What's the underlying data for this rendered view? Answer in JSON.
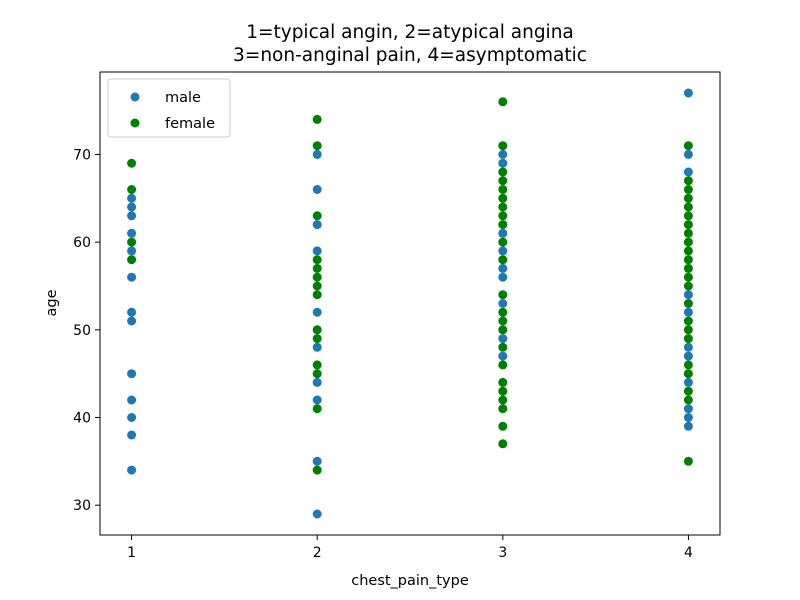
{
  "chart_data": {
    "type": "scatter",
    "title_lines": [
      "1=typical angin, 2=atypical angina",
      "3=non-anginal pain, 4=asymptomatic"
    ],
    "xlabel": "chest_pain_type",
    "ylabel": "age",
    "xlim": [
      0.83,
      4.17
    ],
    "ylim": [
      26.6,
      79.4
    ],
    "xticks": [
      1,
      2,
      3,
      4
    ],
    "yticks": [
      30,
      40,
      50,
      60,
      70
    ],
    "grid": false,
    "legend": "top-left",
    "series": [
      {
        "name": "male",
        "color": "#1f77b4",
        "points": [
          [
            1,
            34
          ],
          [
            1,
            38
          ],
          [
            1,
            40
          ],
          [
            1,
            42
          ],
          [
            1,
            45
          ],
          [
            1,
            51
          ],
          [
            1,
            52
          ],
          [
            1,
            56
          ],
          [
            1,
            59
          ],
          [
            1,
            61
          ],
          [
            1,
            63
          ],
          [
            1,
            64
          ],
          [
            1,
            65
          ],
          [
            2,
            29
          ],
          [
            2,
            35
          ],
          [
            2,
            42
          ],
          [
            2,
            44
          ],
          [
            2,
            48
          ],
          [
            2,
            52
          ],
          [
            2,
            59
          ],
          [
            2,
            62
          ],
          [
            2,
            66
          ],
          [
            2,
            70
          ],
          [
            3,
            47
          ],
          [
            3,
            49
          ],
          [
            3,
            53
          ],
          [
            3,
            56
          ],
          [
            3,
            57
          ],
          [
            3,
            59
          ],
          [
            3,
            61
          ],
          [
            3,
            69
          ],
          [
            3,
            70
          ],
          [
            4,
            39
          ],
          [
            4,
            40
          ],
          [
            4,
            41
          ],
          [
            4,
            44
          ],
          [
            4,
            47
          ],
          [
            4,
            48
          ],
          [
            4,
            52
          ],
          [
            4,
            54
          ],
          [
            4,
            68
          ],
          [
            4,
            70
          ],
          [
            4,
            77
          ]
        ]
      },
      {
        "name": "female",
        "color": "#008000",
        "points": [
          [
            1,
            58
          ],
          [
            1,
            60
          ],
          [
            1,
            66
          ],
          [
            1,
            69
          ],
          [
            2,
            34
          ],
          [
            2,
            41
          ],
          [
            2,
            45
          ],
          [
            2,
            46
          ],
          [
            2,
            49
          ],
          [
            2,
            50
          ],
          [
            2,
            54
          ],
          [
            2,
            55
          ],
          [
            2,
            56
          ],
          [
            2,
            57
          ],
          [
            2,
            58
          ],
          [
            2,
            63
          ],
          [
            2,
            71
          ],
          [
            2,
            74
          ],
          [
            3,
            37
          ],
          [
            3,
            39
          ],
          [
            3,
            41
          ],
          [
            3,
            42
          ],
          [
            3,
            43
          ],
          [
            3,
            44
          ],
          [
            3,
            46
          ],
          [
            3,
            48
          ],
          [
            3,
            50
          ],
          [
            3,
            51
          ],
          [
            3,
            52
          ],
          [
            3,
            54
          ],
          [
            3,
            58
          ],
          [
            3,
            60
          ],
          [
            3,
            62
          ],
          [
            3,
            63
          ],
          [
            3,
            64
          ],
          [
            3,
            65
          ],
          [
            3,
            66
          ],
          [
            3,
            67
          ],
          [
            3,
            68
          ],
          [
            3,
            71
          ],
          [
            3,
            76
          ],
          [
            4,
            35
          ],
          [
            4,
            42
          ],
          [
            4,
            43
          ],
          [
            4,
            45
          ],
          [
            4,
            46
          ],
          [
            4,
            49
          ],
          [
            4,
            50
          ],
          [
            4,
            51
          ],
          [
            4,
            53
          ],
          [
            4,
            55
          ],
          [
            4,
            56
          ],
          [
            4,
            57
          ],
          [
            4,
            58
          ],
          [
            4,
            59
          ],
          [
            4,
            60
          ],
          [
            4,
            61
          ],
          [
            4,
            62
          ],
          [
            4,
            63
          ],
          [
            4,
            64
          ],
          [
            4,
            65
          ],
          [
            4,
            66
          ],
          [
            4,
            67
          ],
          [
            4,
            71
          ]
        ]
      }
    ]
  }
}
